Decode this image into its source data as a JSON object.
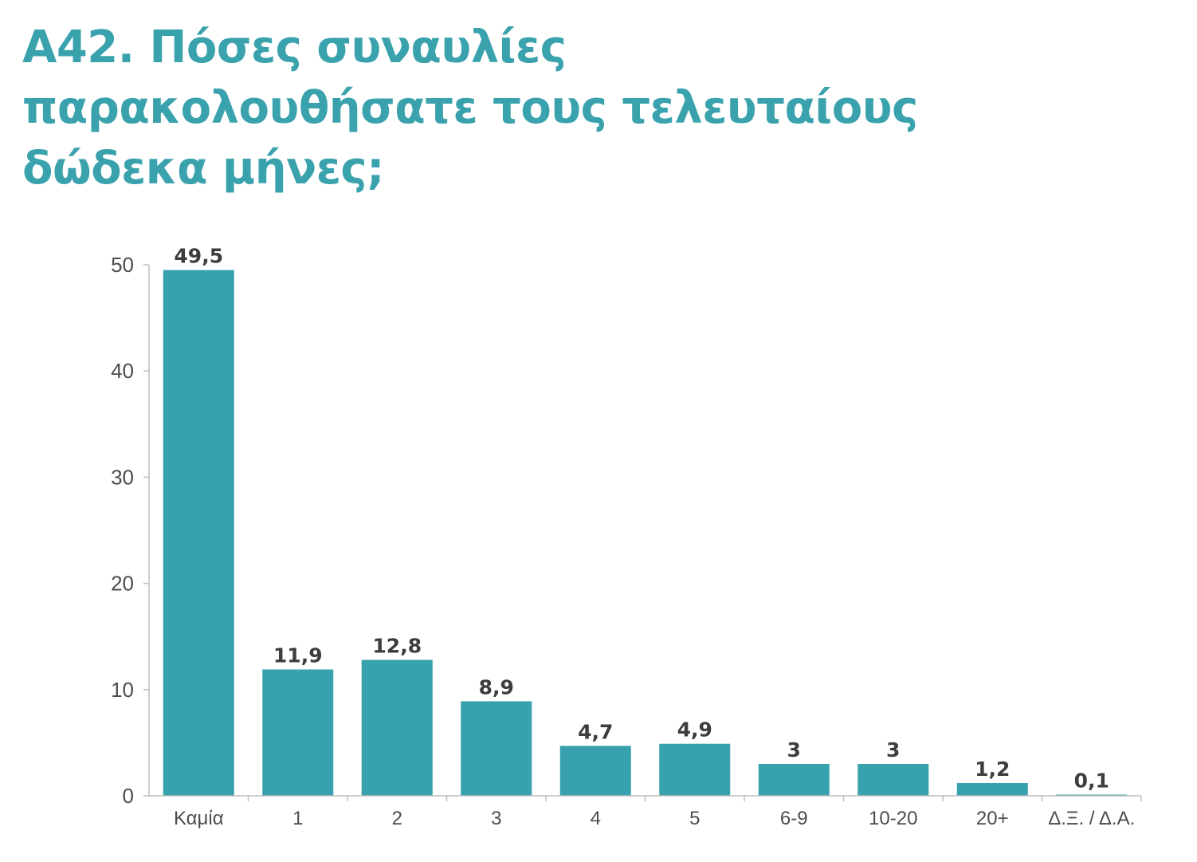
{
  "title_lines": [
    "Α42. Πόσες συναυλίες",
    "παρακολουθήσατε τους τελευταίους",
    "δώδεκα μήνες;"
  ],
  "colors": {
    "title": "#3aa2ad",
    "bar": "#37a1ae",
    "axis": "#bdbdbd",
    "text": "#4d4d4d"
  },
  "chart_data": {
    "type": "bar",
    "title": "Α42. Πόσες συναυλίες παρακολουθήσατε τους τελευταίους δώδεκα μήνες;",
    "categories": [
      "Καμία",
      "1",
      "2",
      "3",
      "4",
      "5",
      "6-9",
      "10-20",
      "20+",
      "Δ.Ξ. / Δ.Α."
    ],
    "values": [
      49.5,
      11.9,
      12.8,
      8.9,
      4.7,
      4.9,
      3,
      3,
      1.2,
      0.1
    ],
    "value_labels": [
      "49,5",
      "11,9",
      "12,8",
      "8,9",
      "4,7",
      "4,9",
      "3",
      "3",
      "1,2",
      "0,1"
    ],
    "yticks": [
      "0",
      "10",
      "20",
      "30",
      "40",
      "50"
    ],
    "ytick_values": [
      0,
      10,
      20,
      30,
      40,
      50
    ],
    "ylim": [
      0,
      50
    ],
    "grid": false,
    "legend": "none"
  }
}
